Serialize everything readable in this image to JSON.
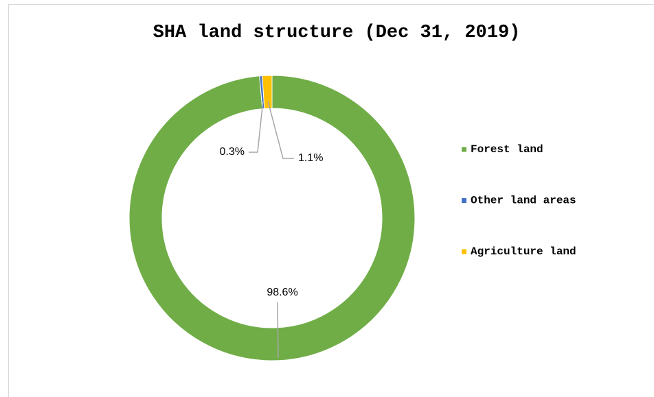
{
  "chart_data": {
    "type": "donut",
    "title": "SHA land structure (Dec 31, 2019)",
    "categories": [
      "Forest land",
      "Other land areas",
      "Agriculture land"
    ],
    "values": [
      98.6,
      0.3,
      1.1
    ],
    "value_labels": [
      "98.6%",
      "0.3%",
      "1.1%"
    ],
    "colors": [
      "#70ad47",
      "#4472c4",
      "#ffc000"
    ],
    "legend": "right"
  }
}
